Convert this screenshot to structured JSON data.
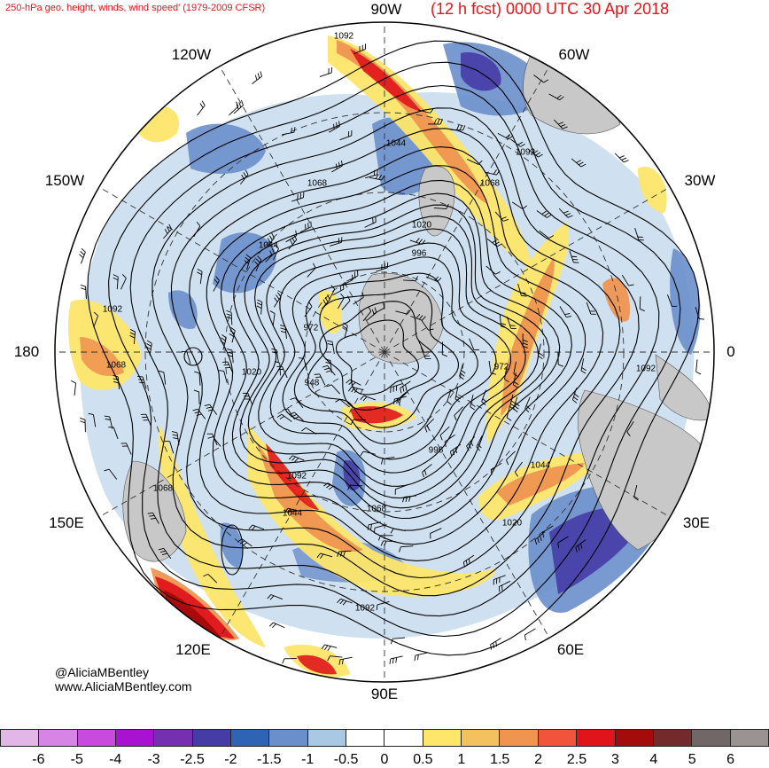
{
  "header": {
    "left_title": "250-hPa geo. height, winds, wind speed' (1979-2009 CFSR)",
    "right_title": "(12 h fcst) 0000 UTC 30 Apr 2018",
    "top_center": "90W"
  },
  "longitude_labels": {
    "top": "90W",
    "bottom": "90E",
    "left": "180",
    "right": "0",
    "upper_left": "120W",
    "upper_right": "60W",
    "mid_upper_left": "150W",
    "mid_upper_right": "30W",
    "mid_lower_left": "150E",
    "mid_lower_right": "30E",
    "lower_left": "120E",
    "lower_right": "60E"
  },
  "height_contour_labels": [
    "1092",
    "1044",
    "1092",
    "1068",
    "1068",
    "1020",
    "1044",
    "996",
    "1092",
    "972",
    "1068",
    "1020",
    "948",
    "972",
    "1092",
    "996",
    "1044",
    "1092",
    "1068",
    "1044",
    "1068",
    "1020",
    "1092"
  ],
  "credits": {
    "handle": "@AliciaMBentley",
    "website": "www.AliciaMBentley.com"
  },
  "colorbar": {
    "colors": [
      "#e2b6e6",
      "#d685e5",
      "#c94bdd",
      "#a713d1",
      "#7530b2",
      "#463ca6",
      "#2f63b3",
      "#6a8fcb",
      "#a8c8e4",
      "#ffffff",
      "#ffffff",
      "#fde66a",
      "#f3c25e",
      "#ef9550",
      "#f0553c",
      "#e0151b",
      "#a40b0b",
      "#722a2a",
      "#716767",
      "#9b9292"
    ],
    "ticks": [
      "-6",
      "-5",
      "-4",
      "-3",
      "-2.5",
      "-2",
      "-1.5",
      "-1",
      "-0.5",
      "0",
      "0.5",
      "1",
      "1.5",
      "2",
      "2.5",
      "3",
      "4",
      "5",
      "6"
    ]
  },
  "map_colors": {
    "land": "#c8c8c8",
    "jet_core": "#e0151b",
    "jet_mid": "#ef9550",
    "jet_edge": "#fde66a",
    "slow": "#6a8fcb",
    "slow_light": "#a8c8e4",
    "slow_dark": "#463ca6"
  }
}
